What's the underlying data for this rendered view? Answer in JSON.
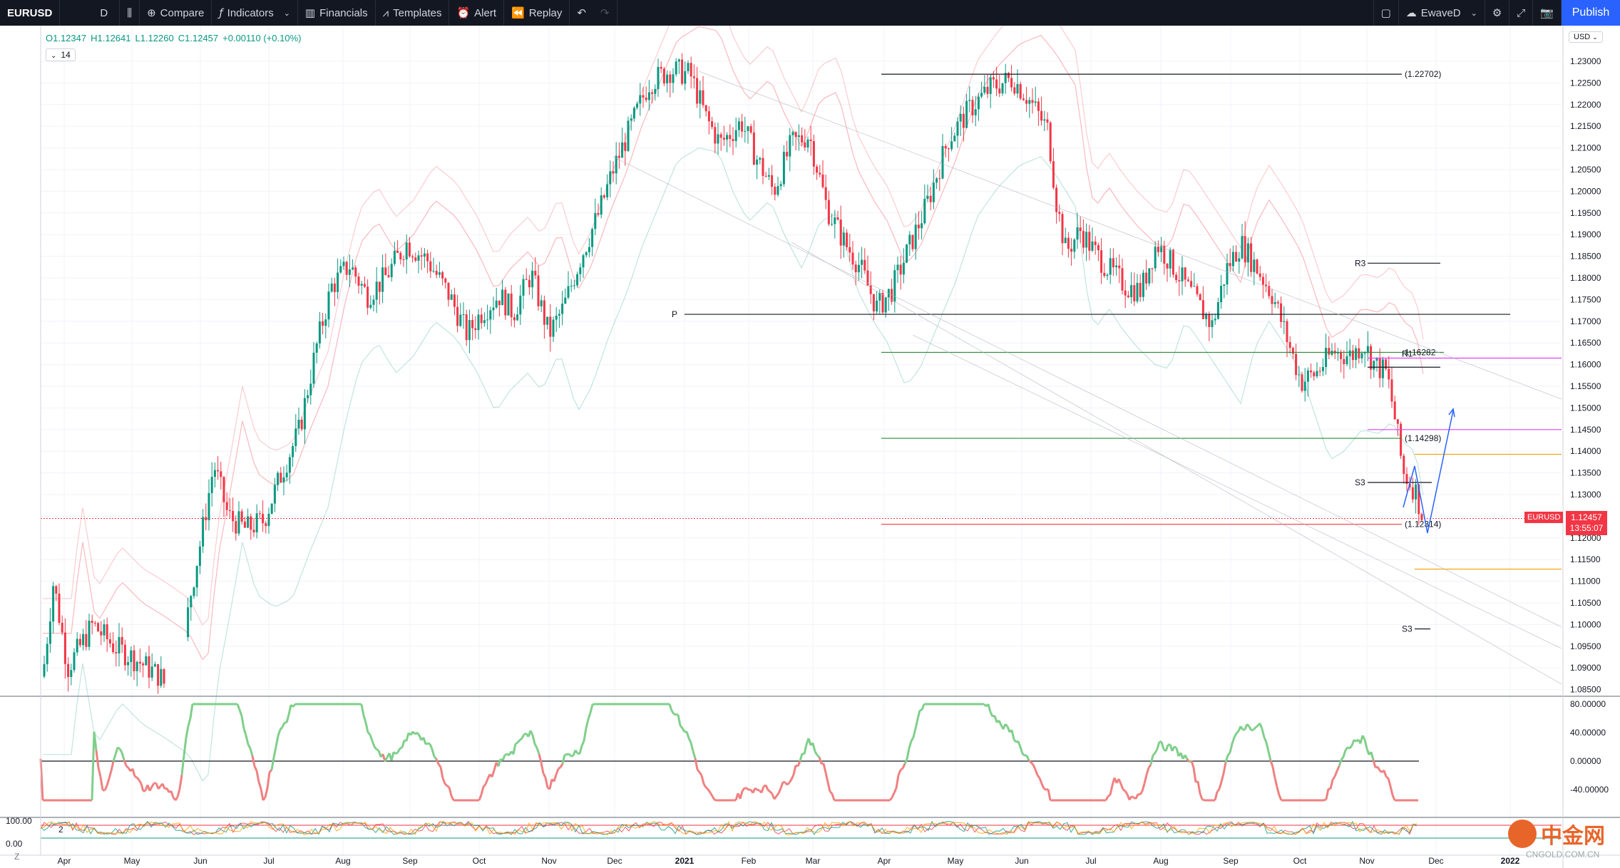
{
  "toolbar": {
    "symbol": "EURUSD",
    "interval": "D",
    "compare": "Compare",
    "indicators": "Indicators",
    "financials": "Financials",
    "templates": "Templates",
    "alert": "Alert",
    "replay": "Replay",
    "layout_name": "EwaveD",
    "publish": "Publish"
  },
  "legend": {
    "open": "O1.12347",
    "high": "H1.12641",
    "low": "L1.12260",
    "close": "C1.12457",
    "change": "+0.00110 (+0.10%)",
    "period": "14"
  },
  "currency": "USD",
  "price_axis": [
    "1.23000",
    "1.22500",
    "1.22000",
    "1.21500",
    "1.21000",
    "1.20500",
    "1.20000",
    "1.19500",
    "1.19000",
    "1.18500",
    "1.18000",
    "1.17500",
    "1.17000",
    "1.16500",
    "1.16000",
    "1.15500",
    "1.15000",
    "1.14500",
    "1.14000",
    "1.13500",
    "1.13000",
    "1.12500",
    "1.12000",
    "1.11500",
    "1.11000",
    "1.10500",
    "1.10000",
    "1.09500",
    "1.09000",
    "1.08500"
  ],
  "osc_axis": [
    "80.00000",
    "40.00000",
    "0.00000",
    "-40.00000"
  ],
  "rsi_axis": [
    "100.00",
    "0.00"
  ],
  "rsi_period": "2",
  "time_axis": [
    "Apr",
    "May",
    "Jun",
    "Jul",
    "Aug",
    "Sep",
    "Oct",
    "Nov",
    "Dec",
    "2021",
    "Feb",
    "Mar",
    "Apr",
    "May",
    "Jun",
    "Jul",
    "Aug",
    "Sep",
    "Oct",
    "Nov",
    "Dec",
    "2022"
  ],
  "levels": {
    "top": "(1.22702)",
    "r1": "1.16282",
    "mid": "(1.14298)",
    "low": "(1.12314)",
    "pivot": "P",
    "r3": "R3",
    "r1_label": "R1",
    "s3a": "S3",
    "s3b": "S3"
  },
  "last_price": {
    "symbol": "EURUSD",
    "price": "1.12457",
    "timer": "13:55:07"
  },
  "watermark": {
    "brand": "中金网",
    "sub": "CNGOLD.COM.CN"
  },
  "colors": {
    "up": "#089981",
    "down": "#f23645",
    "accent": "#2962ff",
    "toolbar": "#131722"
  }
}
